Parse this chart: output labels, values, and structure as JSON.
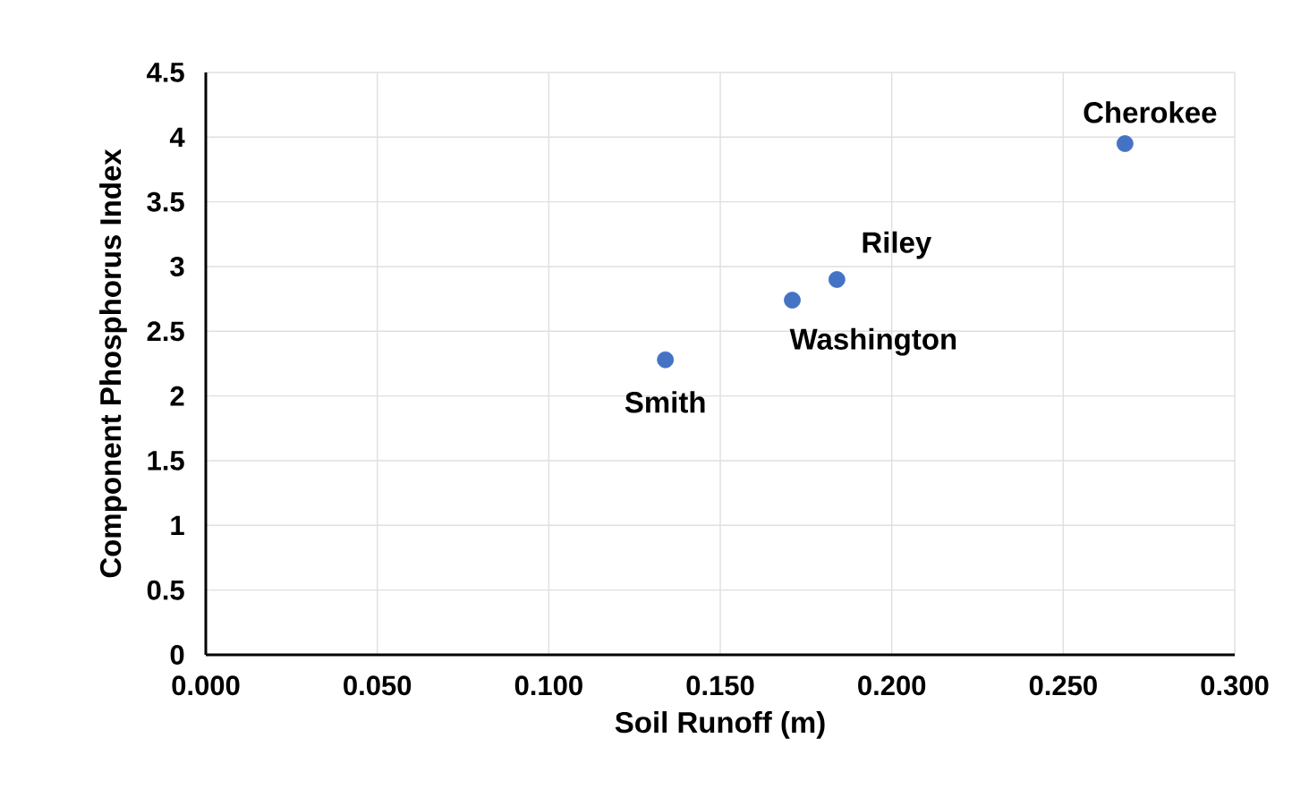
{
  "chart_data": {
    "type": "scatter",
    "xlabel": "Soil Runoff (m)",
    "ylabel": "Component Phosphorus Index",
    "x": [
      0.134,
      0.171,
      0.184,
      0.268
    ],
    "series": [
      {
        "color": "#4472c4",
        "values": [
          2.28,
          2.74,
          2.9,
          3.95
        ]
      }
    ],
    "xlim": [
      0,
      0.3
    ],
    "ylim": [
      0,
      4.5
    ],
    "xticks": [
      {
        "value": 0,
        "label": "0.000"
      },
      {
        "value": 0.05,
        "label": "0.050"
      },
      {
        "value": 0.1,
        "label": "0.100"
      },
      {
        "value": 0.15,
        "label": "0.150"
      },
      {
        "value": 0.2,
        "label": "0.200"
      },
      {
        "value": 0.25,
        "label": "0.250"
      },
      {
        "value": 0.3,
        "label": "0.300"
      }
    ],
    "yticks": [
      0,
      0.5,
      1,
      1.5,
      2,
      2.5,
      3,
      3.5,
      4,
      4.5
    ],
    "grid": true,
    "annotations": [
      {
        "text": "Smith",
        "x": 0.134,
        "y": 2.28
      },
      {
        "text": "Washington",
        "x": 0.171,
        "y": 2.74
      },
      {
        "text": "Riley",
        "x": 0.184,
        "y": 2.9
      },
      {
        "text": "Cherokee",
        "x": 0.268,
        "y": 3.95
      }
    ]
  }
}
